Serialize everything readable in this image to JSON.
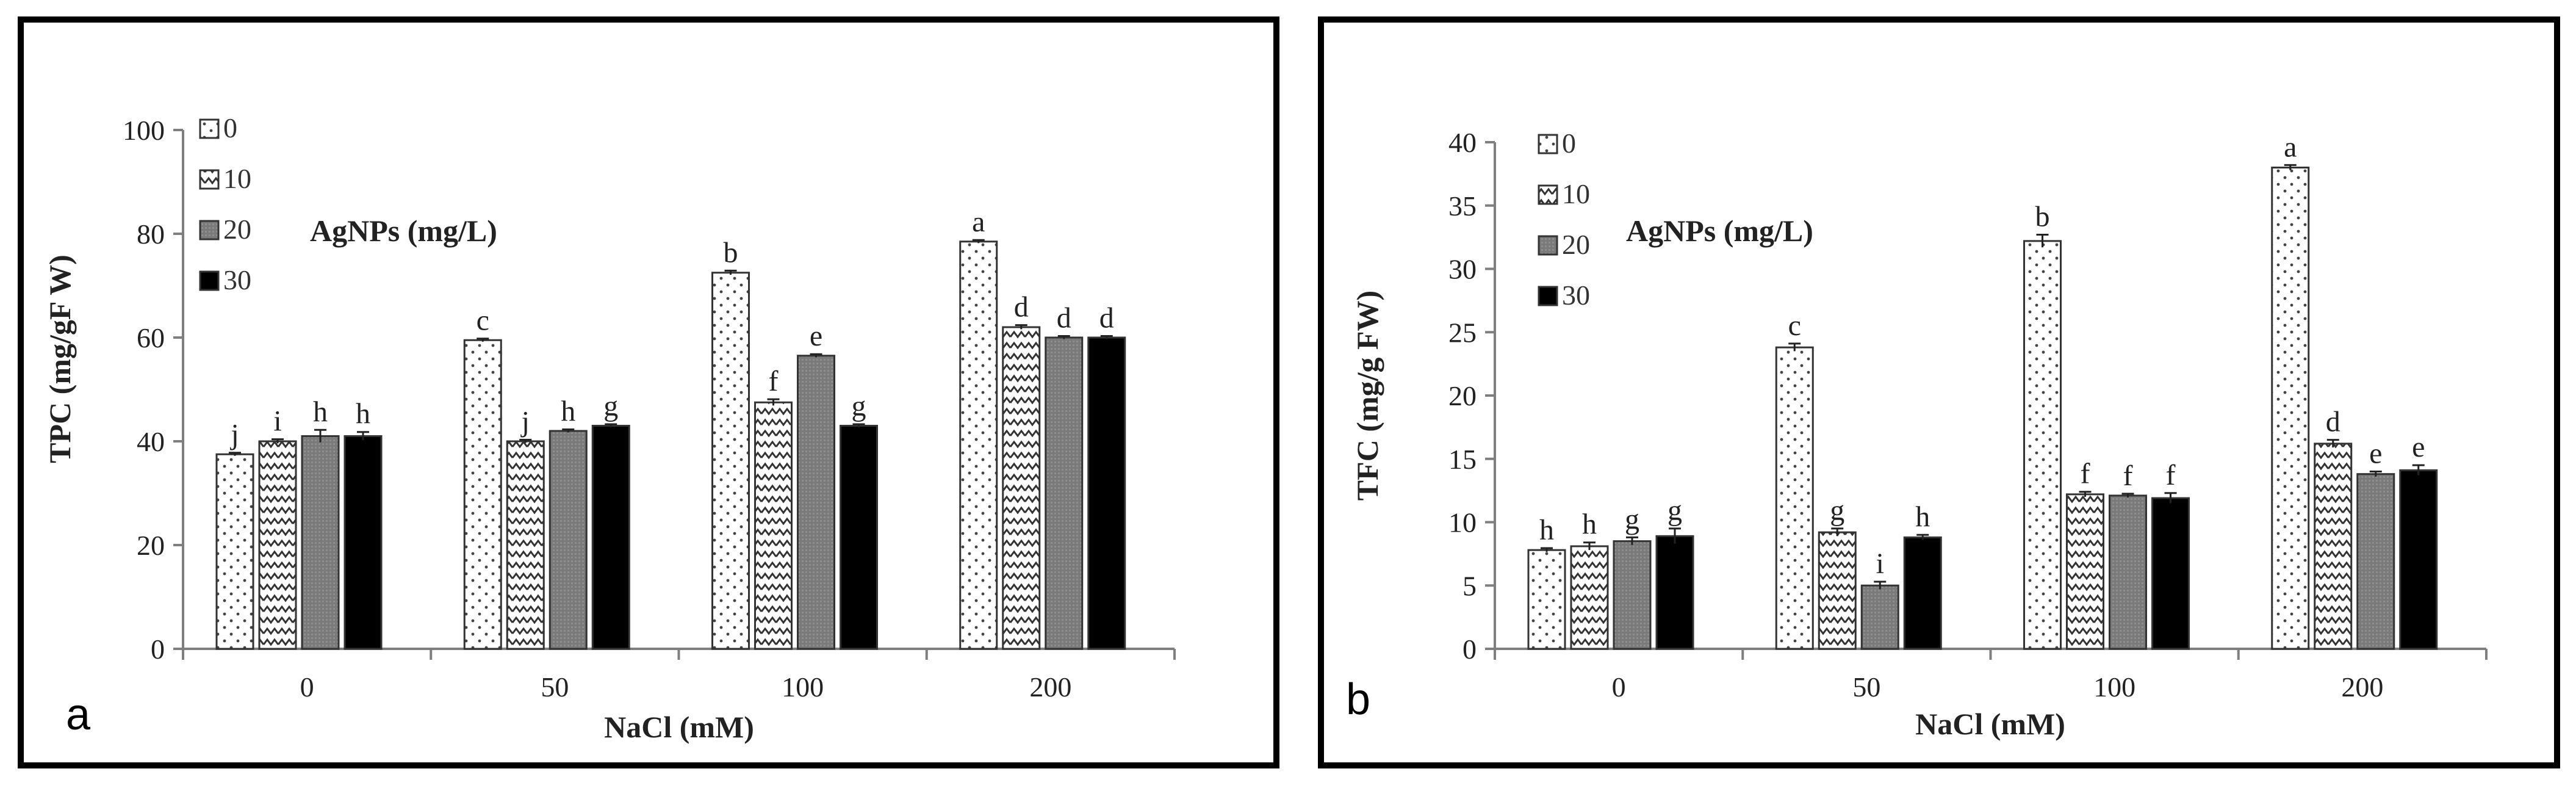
{
  "chart_data": [
    {
      "type": "bar",
      "panel_label": "a",
      "categories": [
        "0",
        "50",
        "100",
        "200"
      ],
      "xlabel": "NaCl (mM)",
      "ylabel": "TPC (mg/gF W)",
      "ylim": [
        0,
        100
      ],
      "yticks": [
        "0",
        "20",
        "40",
        "60",
        "80",
        "100"
      ],
      "legend_title": "AgNPs (mg/L)",
      "legend_position": "top-left",
      "series": [
        {
          "name": "0",
          "values": [
            37.5,
            59.5,
            72.5,
            78.5
          ],
          "errors": [
            0.3,
            0.3,
            0.4,
            0.3
          ],
          "letters": [
            "j",
            "c",
            "b",
            "a"
          ]
        },
        {
          "name": "10",
          "values": [
            40,
            40,
            47.5,
            62
          ],
          "errors": [
            0.4,
            0.3,
            0.6,
            0.4
          ],
          "letters": [
            "i",
            "j",
            "f",
            "d"
          ]
        },
        {
          "name": "20",
          "values": [
            41,
            42,
            56.5,
            60
          ],
          "errors": [
            1.2,
            0.3,
            0.3,
            0.3
          ],
          "letters": [
            "h",
            "h",
            "e",
            "d"
          ]
        },
        {
          "name": "30",
          "values": [
            41,
            43,
            43,
            60
          ],
          "errors": [
            0.8,
            0.3,
            0.3,
            0.3
          ],
          "letters": [
            "h",
            "g",
            "g",
            "d"
          ]
        }
      ]
    },
    {
      "type": "bar",
      "panel_label": "b",
      "categories": [
        "0",
        "50",
        "100",
        "200"
      ],
      "xlabel": "NaCl (mM)",
      "ylabel": "TFC (mg/g FW)",
      "ylim": [
        0,
        40
      ],
      "yticks": [
        "0",
        "5",
        "10",
        "15",
        "20",
        "25",
        "30",
        "35",
        "40"
      ],
      "legend_title": "AgNPs (mg/L)",
      "legend_position": "top-left",
      "series": [
        {
          "name": "0",
          "values": [
            7.8,
            23.8,
            32.2,
            38
          ],
          "errors": [
            0.15,
            0.3,
            0.5,
            0.2
          ],
          "letters": [
            "h",
            "c",
            "b",
            "a"
          ]
        },
        {
          "name": "10",
          "values": [
            8.1,
            9.2,
            12.2,
            16.2
          ],
          "errors": [
            0.3,
            0.3,
            0.2,
            0.3
          ],
          "letters": [
            "h",
            "g",
            "f",
            "d"
          ]
        },
        {
          "name": "20",
          "values": [
            8.5,
            5,
            12.1,
            13.8
          ],
          "errors": [
            0.3,
            0.3,
            0.15,
            0.2
          ],
          "letters": [
            "g",
            "i",
            "f",
            "e"
          ]
        },
        {
          "name": "30",
          "values": [
            8.9,
            8.8,
            11.9,
            14.1
          ],
          "errors": [
            0.6,
            0.2,
            0.4,
            0.4
          ],
          "letters": [
            "g",
            "h",
            "f",
            "e"
          ]
        }
      ]
    }
  ]
}
